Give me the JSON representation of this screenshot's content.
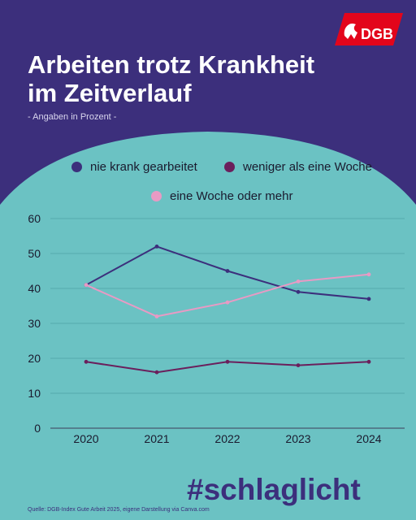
{
  "brand": {
    "logo_text": "DGB"
  },
  "title_lines": [
    "Arbeiten trotz Krankheit",
    "im Zeitverlauf"
  ],
  "subtitle": "- Angaben in Prozent -",
  "hashtag": "#schlaglicht",
  "source": "Quelle: DGB-Index Gute Arbeit 2025, eigene Darstellung via Canva.com",
  "colors": {
    "background": "#3c2f7c",
    "panel": "#6bc2c3",
    "series_nie_krank": "#3c2f7c",
    "series_weniger_woche": "#6b1f5c",
    "series_woche_mehr": "#e89ac4",
    "logo_red": "#e3051b"
  },
  "chart_data": {
    "type": "line",
    "x": [
      "2020",
      "2021",
      "2022",
      "2023",
      "2024"
    ],
    "ylim": [
      0,
      60
    ],
    "yticks": [
      0,
      10,
      20,
      30,
      40,
      50,
      60
    ],
    "grid": true,
    "legend_position": "top",
    "series": [
      {
        "name": "nie krank gearbeitet",
        "values": [
          41,
          52,
          45,
          39,
          37
        ]
      },
      {
        "name": "weniger als eine Woche",
        "values": [
          19,
          16,
          19,
          18,
          19
        ]
      },
      {
        "name": "eine Woche oder mehr",
        "values": [
          41,
          32,
          36,
          42,
          44
        ]
      }
    ]
  }
}
